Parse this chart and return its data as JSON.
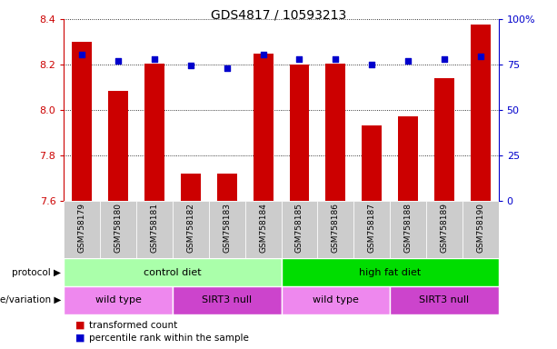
{
  "title": "GDS4817 / 10593213",
  "samples": [
    "GSM758179",
    "GSM758180",
    "GSM758181",
    "GSM758182",
    "GSM758183",
    "GSM758184",
    "GSM758185",
    "GSM758186",
    "GSM758187",
    "GSM758188",
    "GSM758189",
    "GSM758190"
  ],
  "bar_values": [
    8.3,
    8.085,
    8.205,
    7.72,
    7.72,
    8.25,
    8.2,
    8.205,
    7.93,
    7.97,
    8.14,
    8.375
  ],
  "dot_values": [
    8.245,
    8.215,
    8.225,
    8.195,
    8.185,
    8.245,
    8.225,
    8.225,
    8.2,
    8.215,
    8.225,
    8.235
  ],
  "ylim": [
    7.6,
    8.4
  ],
  "yticks_left": [
    7.6,
    7.8,
    8.0,
    8.2,
    8.4
  ],
  "yticks_right": [
    0,
    25,
    50,
    75,
    100
  ],
  "bar_color": "#cc0000",
  "dot_color": "#0000cc",
  "bar_baseline": 7.6,
  "protocol_groups": [
    {
      "label": "control diet",
      "start": 0,
      "end": 6,
      "color": "#aaffaa"
    },
    {
      "label": "high fat diet",
      "start": 6,
      "end": 12,
      "color": "#00dd00"
    }
  ],
  "genotype_groups": [
    {
      "label": "wild type",
      "start": 0,
      "end": 3,
      "color": "#ee88ee"
    },
    {
      "label": "SIRT3 null",
      "start": 3,
      "end": 6,
      "color": "#cc44cc"
    },
    {
      "label": "wild type",
      "start": 6,
      "end": 9,
      "color": "#ee88ee"
    },
    {
      "label": "SIRT3 null",
      "start": 9,
      "end": 12,
      "color": "#cc44cc"
    }
  ],
  "protocol_label": "protocol",
  "genotype_label": "genotype/variation",
  "legend_bar": "transformed count",
  "legend_dot": "percentile rank within the sample",
  "tick_color_left": "#cc0000",
  "tick_color_right": "#0000cc",
  "grid_color": "#000000",
  "background_color": "#ffffff",
  "xtick_bg": "#cccccc",
  "bar_width": 0.55
}
